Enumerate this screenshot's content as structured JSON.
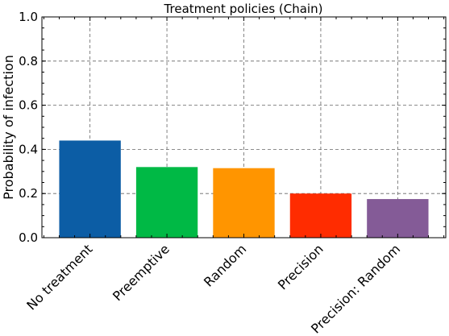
{
  "chart_data": {
    "type": "bar",
    "title": "Treatment policies (Chain)",
    "xlabel": "",
    "ylabel": "Probability of infection",
    "categories": [
      "No treatment",
      "Preemptive",
      "Random",
      "Precision",
      "Precision: Random"
    ],
    "values": [
      0.44,
      0.32,
      0.315,
      0.2,
      0.175
    ],
    "colors": [
      "#0c5da5",
      "#00b945",
      "#ff9500",
      "#ff2c00",
      "#845b97"
    ],
    "ylim": [
      0,
      1.0
    ],
    "yticks": [
      "0.0",
      "0.2",
      "0.4",
      "0.6",
      "0.8",
      "1.0"
    ],
    "grid": true,
    "legend": "none"
  }
}
